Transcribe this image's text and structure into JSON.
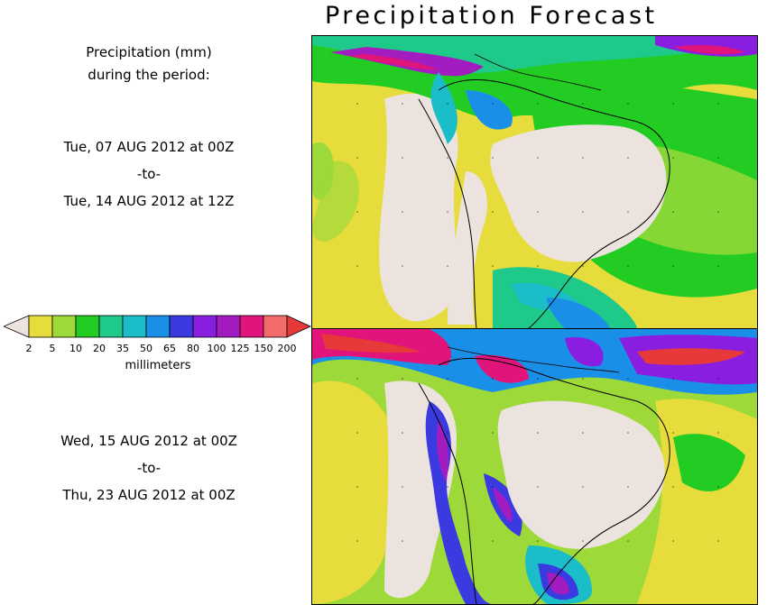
{
  "title": "Precipitation Forecast",
  "legend": {
    "header_line1": "Precipitation (mm)",
    "header_line2": "during the period:",
    "unit": "millimeters",
    "bins": [
      "2",
      "5",
      "10",
      "20",
      "35",
      "50",
      "65",
      "80",
      "100",
      "125",
      "150",
      "200"
    ],
    "colors": [
      "#ece3df",
      "#e6dc3c",
      "#9ed93a",
      "#22cc22",
      "#1ec98a",
      "#1bbdc9",
      "#1a8fe8",
      "#3a3ae0",
      "#8a1ee0",
      "#a21cc0",
      "#e0147a",
      "#f26a6a",
      "#e8393a"
    ]
  },
  "period1": {
    "start": "Tue, 07 AUG 2012 at 00Z",
    "sep": "-to-",
    "end": "Tue, 14 AUG 2012 at 12Z"
  },
  "period2": {
    "start": "Wed, 15 AUG 2012 at 00Z",
    "sep": "-to-",
    "end": "Thu, 23 AUG 2012 at 00Z"
  }
}
